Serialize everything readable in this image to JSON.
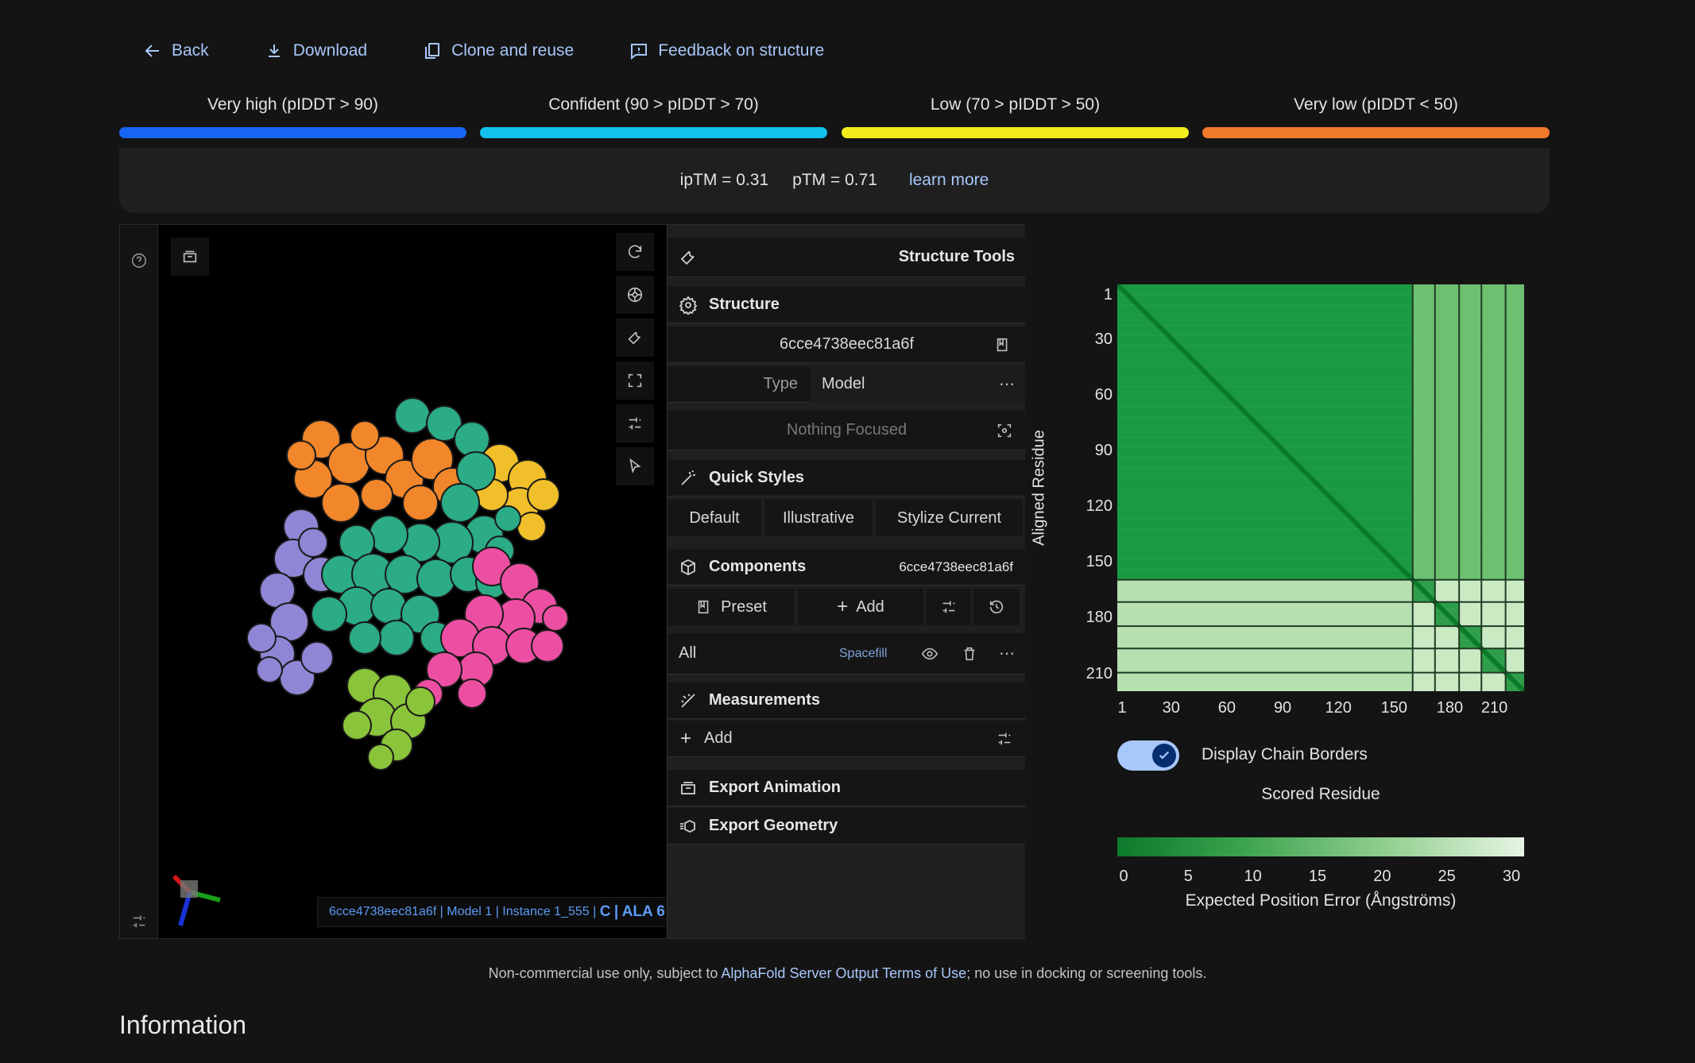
{
  "topbar": {
    "back": "Back",
    "download": "Download",
    "clone": "Clone and reuse",
    "feedback": "Feedback on structure"
  },
  "legend": [
    {
      "label": "Very high (pIDDT > 90)",
      "color": "#1765f4"
    },
    {
      "label": "Confident (90 > pIDDT > 70)",
      "color": "#11c2ec"
    },
    {
      "label": "Low (70 > pIDDT > 50)",
      "color": "#f4eb1e"
    },
    {
      "label": "Very low (pIDDT < 50)",
      "color": "#f27a2c"
    }
  ],
  "scores": {
    "iptm": "ipTM = 0.31",
    "ptm": "pTM = 0.71",
    "learn_more": "learn more"
  },
  "viewer": {
    "status": {
      "id": "6cce4738eec81a6f",
      "model": "Model 1",
      "instance": "Instance 1_555",
      "chain": "C",
      "residue": "ALA 6"
    }
  },
  "panel": {
    "title": "Structure Tools",
    "structure_header": "Structure",
    "structure_id": "6cce4738eec81a6f",
    "type_label": "Type",
    "type_value": "Model",
    "focus_placeholder": "Nothing Focused",
    "quick_styles_header": "Quick Styles",
    "quick_styles": [
      "Default",
      "Illustrative",
      "Stylize Current"
    ],
    "components_header": "Components",
    "components_id": "6cce4738eec81a6f",
    "preset": "Preset",
    "add": "Add",
    "all_label": "All",
    "all_repr": "Spacefill",
    "measurements_header": "Measurements",
    "measure_add": "Add",
    "export_animation": "Export Animation",
    "export_geometry": "Export Geometry"
  },
  "pae": {
    "y_ticks": [
      "1",
      "30",
      "60",
      "90",
      "120",
      "150",
      "180",
      "210"
    ],
    "x_ticks": [
      "1",
      "30",
      "60",
      "90",
      "120",
      "150",
      "180",
      "210"
    ],
    "y_label": "Aligned Residue",
    "x_label": "Scored Residue",
    "toggle_label": "Display Chain Borders",
    "toggle_on": true,
    "colorbar_ticks": [
      "0",
      "5",
      "10",
      "15",
      "20",
      "25",
      "30"
    ],
    "colorbar_label": "Expected Position Error (Ångströms)"
  },
  "footer": {
    "pre": "Non-commercial use only, subject to ",
    "link": "AlphaFold Server Output Terms of Use",
    "post": "; no use in docking or screening tools.",
    "section": "Information"
  },
  "colors": {
    "accent": "#a8c7fa",
    "molecule_orange": "#f2862a",
    "molecule_teal": "#2bab86",
    "molecule_yellow": "#f1bf2a",
    "molecule_purple": "#8f86d6",
    "molecule_pink": "#ec4fa2",
    "molecule_green": "#8ac43a"
  }
}
